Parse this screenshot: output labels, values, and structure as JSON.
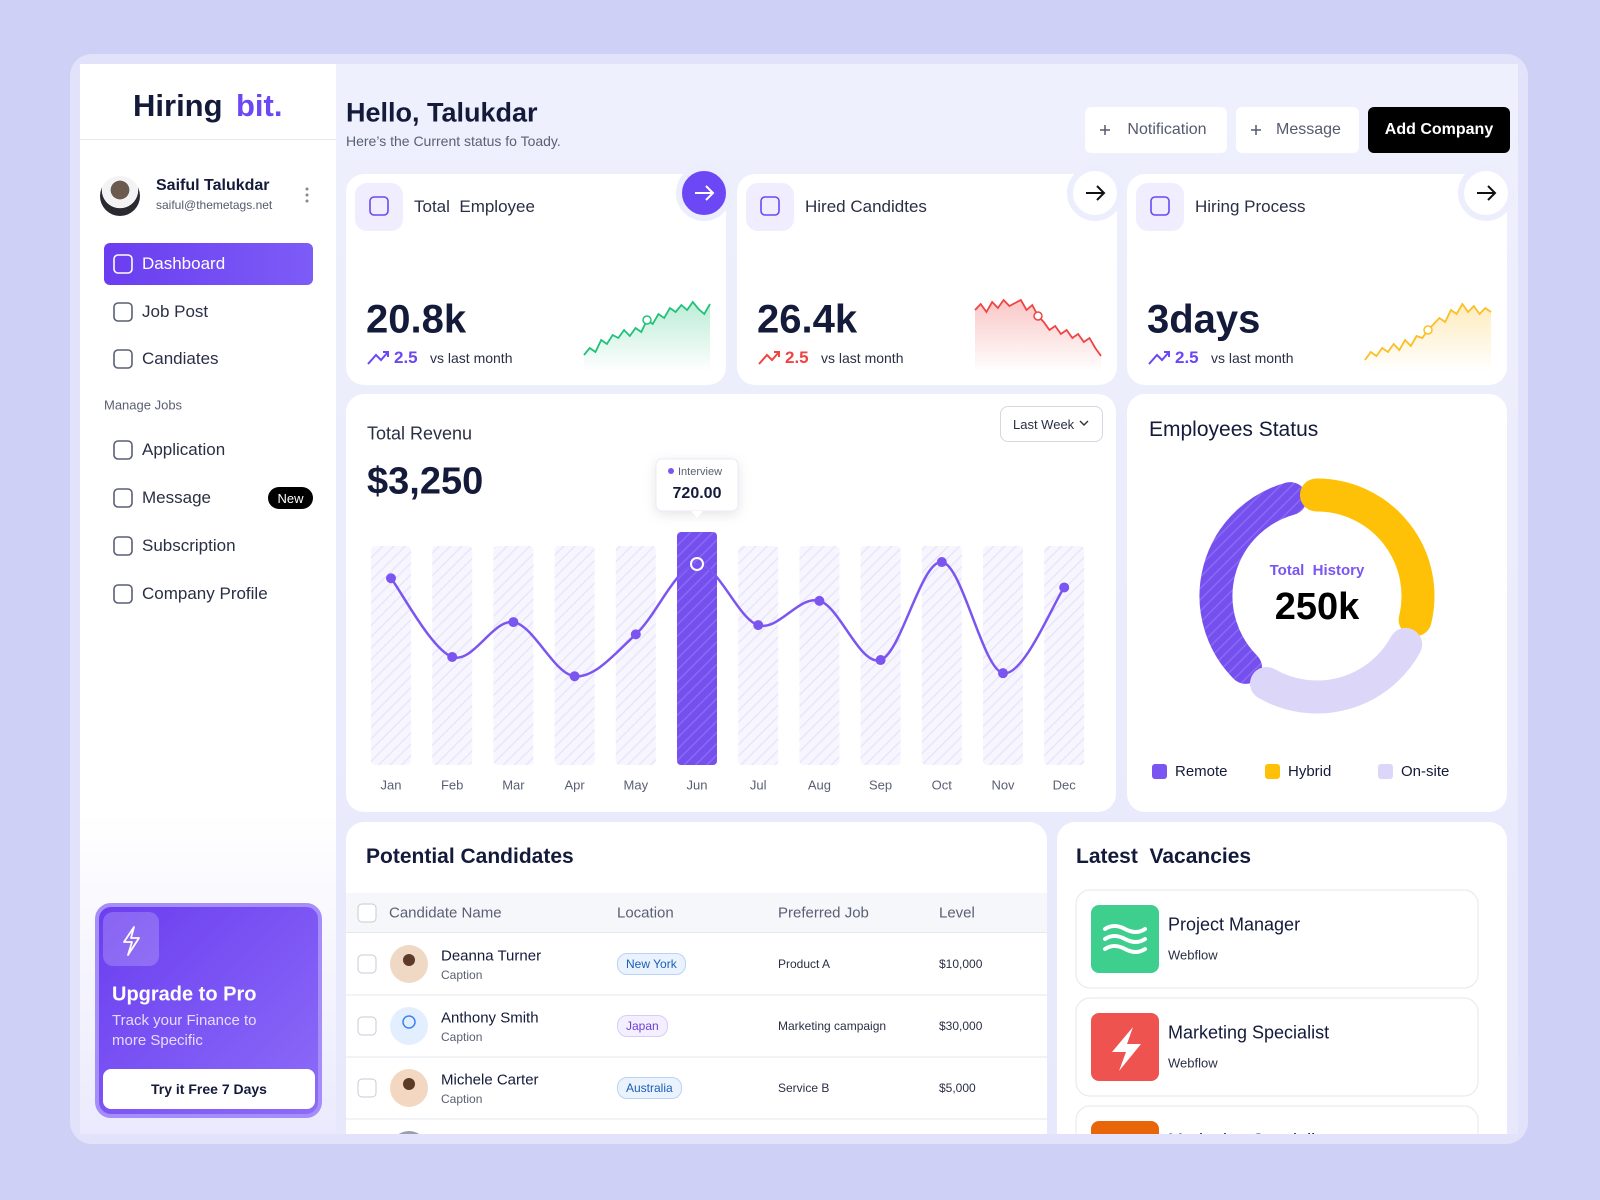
{
  "sidebar": {
    "logo": {
      "text": "Hiring",
      "accent": "bit."
    },
    "profile": {
      "name": "Saiful Talukdar",
      "email": "saiful@themetags.net"
    },
    "nav": [
      "Dashboard",
      "Job Post",
      "Candiates"
    ],
    "section": "Manage Jobs",
    "manage": [
      {
        "label": "Application"
      },
      {
        "label": "Message",
        "badge": "New"
      },
      {
        "label": "Subscription"
      },
      {
        "label": "Company Profile"
      }
    ],
    "upgrade": {
      "title": "Upgrade to Pro",
      "text": "Track your Finance to more Specific",
      "button": "Try it Free 7 Days"
    }
  },
  "header": {
    "title": "Hello, Talukdar",
    "subtitle": "Here’s the Current status fo Toady.",
    "buttons": [
      "Notification",
      "Message",
      "Add Company"
    ]
  },
  "stats": [
    {
      "title": "Total  Employee",
      "value": "20.8k",
      "change": "2.5",
      "note": "vs last month",
      "color": "#6c47f5"
    },
    {
      "title": "Hired Candidtes",
      "value": "26.4k",
      "change": "2.5",
      "note": "vs last month",
      "color": "#ef4444"
    },
    {
      "title": "Hiring Process",
      "value": "3days",
      "change": "2.5",
      "note": "vs last month",
      "color": "#6c47f5"
    }
  ],
  "chart_data": [
    {
      "type": "line",
      "title": "Total Revenu",
      "total": "$3,250",
      "filter": "Last Week",
      "categories": [
        "Jan",
        "Feb",
        "Mar",
        "Apr",
        "May",
        "Jun",
        "Jul",
        "Aug",
        "Sep",
        "Oct",
        "Nov",
        "Dec"
      ],
      "values": [
        669,
        387,
        512,
        318,
        468,
        720,
        501,
        588,
        376,
        727,
        329,
        636
      ],
      "color": "#7b55f0",
      "tooltip": {
        "label": "Interview",
        "value": 720,
        "value_label": "720.00"
      }
    },
    {
      "type": "donut",
      "title": "Employees Status",
      "center_label": "Total  History",
      "center_value": "250k",
      "categories": [
        "Remote",
        "Hybrid",
        "On-site"
      ],
      "values": [
        38,
        33,
        29
      ],
      "colors": [
        "#7b55f0",
        "#ffc107",
        "#dcd6f8"
      ]
    }
  ],
  "candidates": {
    "title": "Potential Candidates",
    "columns": [
      "Candidate Name",
      "Location",
      "Preferred Job",
      "Level"
    ],
    "rows": [
      {
        "name": "Deanna Turner",
        "caption": "Caption",
        "location": "New York",
        "job": "Product A",
        "level": "$10,000"
      },
      {
        "name": "Anthony Smith",
        "caption": "Caption",
        "location": "Japan",
        "job": "Marketing campaign",
        "level": "$30,000"
      },
      {
        "name": "Michele Carter",
        "caption": "Caption",
        "location": "Australia",
        "job": "Service B",
        "level": "$5,000"
      }
    ]
  },
  "vacancies": {
    "title": "Latest  Vacancies",
    "items": [
      {
        "title": "Project Manager",
        "company": "Webflow"
      },
      {
        "title": "Marketing Specialist",
        "company": "Webflow"
      },
      {
        "title": "Marketing Specialist"
      }
    ]
  }
}
